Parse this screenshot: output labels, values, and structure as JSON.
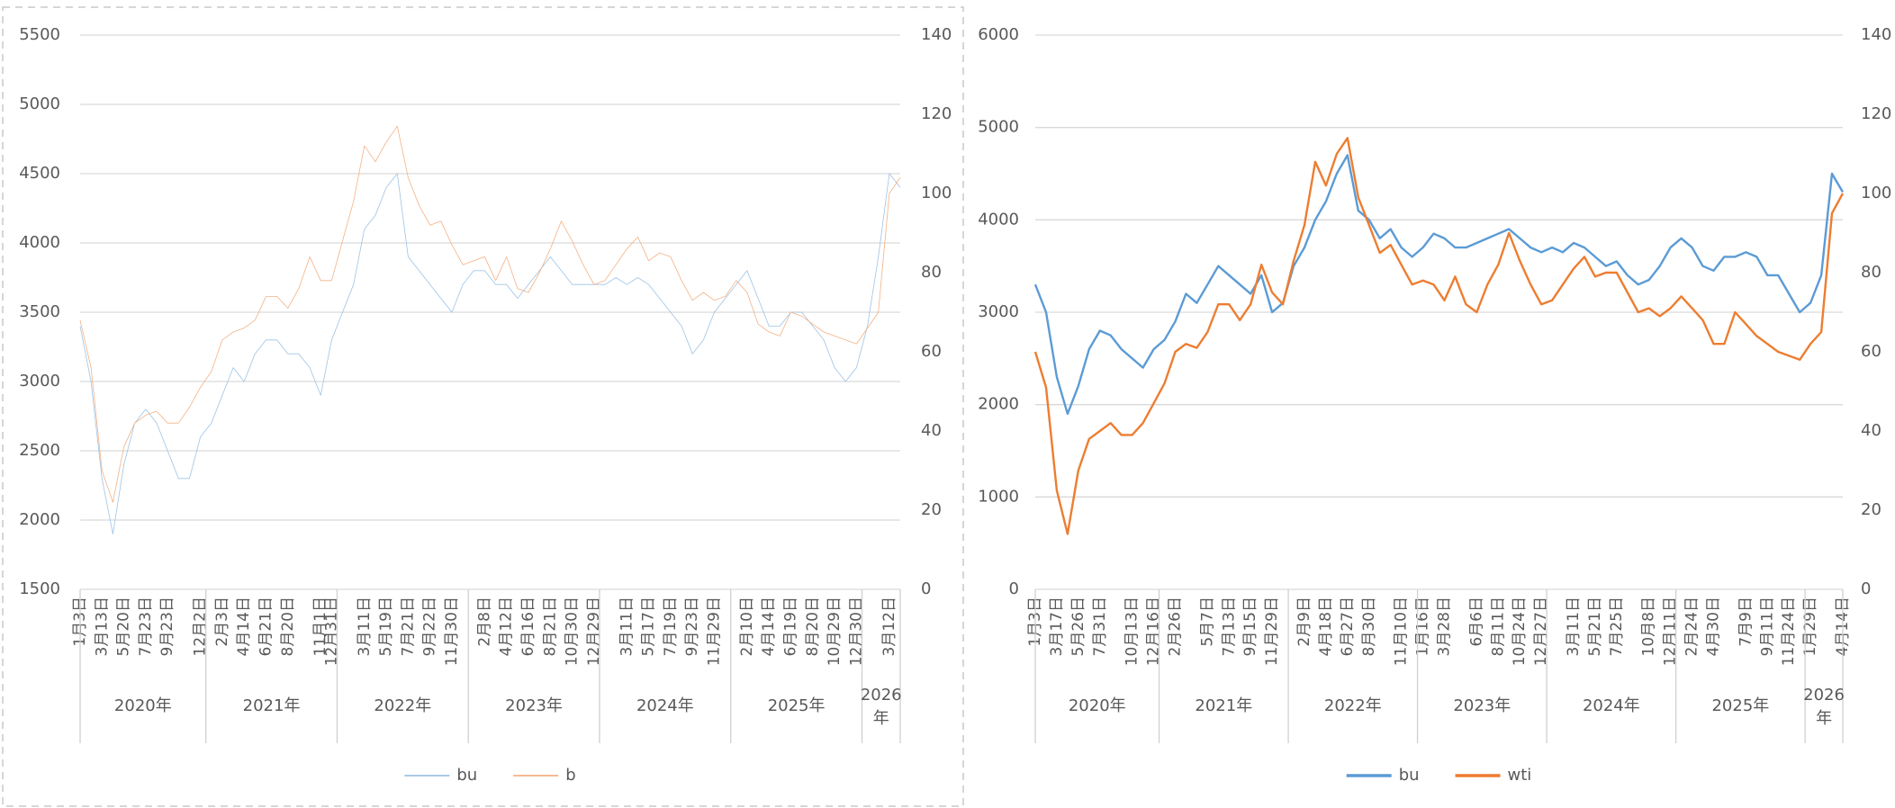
{
  "chart_data": [
    {
      "type": "line",
      "categories": [
        "1月3日",
        null,
        "3月13日",
        null,
        "5月20日",
        null,
        "7月23日",
        null,
        "9月23日",
        null,
        null,
        "12月2日",
        null,
        "2月3日",
        null,
        "4月14日",
        null,
        "6月21日",
        null,
        "8月20日",
        null,
        null,
        "11月1日",
        "12月31日",
        null,
        null,
        "3月11日",
        null,
        "5月19日",
        null,
        "7月21日",
        null,
        "9月22日",
        null,
        "11月30日",
        null,
        null,
        "2月8日",
        null,
        "4月12日",
        null,
        "6月16日",
        null,
        "8月21日",
        null,
        "10月30日",
        null,
        "12月29日",
        null,
        null,
        "3月11日",
        null,
        "5月17日",
        null,
        "7月19日",
        null,
        "9月23日",
        null,
        "11月29日",
        null,
        null,
        "2月10日",
        null,
        "4月14日",
        null,
        "6月19日",
        null,
        "8月20日",
        null,
        "10月29日",
        null,
        "12月30日",
        null,
        null,
        "3月12日",
        null
      ],
      "x_groups": [
        {
          "label": "2020年",
          "count": 12
        },
        {
          "label": "2021年",
          "count": 12
        },
        {
          "label": "2022年",
          "count": 12
        },
        {
          "label": "2023年",
          "count": 12
        },
        {
          "label": "2024年",
          "count": 12
        },
        {
          "label": "2025年",
          "count": 12
        },
        {
          "label": "2026年",
          "count": 4
        }
      ],
      "ylim": [
        1500,
        5500
      ],
      "yticks": [
        1500,
        2000,
        2500,
        3000,
        3500,
        4000,
        4500,
        5000,
        5500
      ],
      "y2lim": [
        0,
        140
      ],
      "y2ticks": [
        0,
        20,
        40,
        60,
        80,
        100,
        120,
        140
      ],
      "grid": true,
      "legend": "bottom",
      "series": [
        {
          "name": "bu",
          "color": "#9dc3e6",
          "values": [
            3400,
            3000,
            2300,
            1900,
            2400,
            2700,
            2800,
            2700,
            2500,
            2300,
            2300,
            2600,
            2700,
            2900,
            3100,
            3000,
            3200,
            3300,
            3300,
            3200,
            3200,
            3100,
            2900,
            3300,
            3500,
            3700,
            4100,
            4200,
            4400,
            4500,
            3900,
            3800,
            3700,
            3600,
            3500,
            3700,
            3800,
            3800,
            3700,
            3700,
            3600,
            3700,
            3800,
            3900,
            3800,
            3700,
            3700,
            3700,
            3700,
            3750,
            3700,
            3750,
            3700,
            3600,
            3500,
            3400,
            3200,
            3300,
            3500,
            3600,
            3700,
            3800,
            3600,
            3400,
            3400,
            3500,
            3500,
            3400,
            3300,
            3100,
            3000,
            3100,
            3400,
            3900,
            4500,
            4400
          ]
        },
        {
          "name": "b",
          "color": "#f4b183",
          "axis": "y2",
          "values": [
            68,
            56,
            30,
            22,
            36,
            42,
            44,
            45,
            42,
            42,
            46,
            51,
            55,
            63,
            65,
            66,
            68,
            74,
            74,
            71,
            76,
            84,
            78,
            78,
            88,
            98,
            112,
            108,
            113,
            117,
            104,
            97,
            92,
            93,
            87,
            82,
            83,
            84,
            78,
            84,
            76,
            75,
            80,
            86,
            93,
            88,
            82,
            77,
            78,
            82,
            86,
            89,
            83,
            85,
            84,
            78,
            73,
            75,
            73,
            74,
            78,
            75,
            67,
            65,
            64,
            70,
            69,
            67,
            65,
            64,
            63,
            62,
            66,
            70,
            100,
            104
          ]
        }
      ]
    },
    {
      "type": "line",
      "categories": [
        "1月3日",
        null,
        "3月17日",
        null,
        "5月26日",
        null,
        "7月31日",
        null,
        null,
        "10月13日",
        null,
        "12月16日",
        null,
        "2月26日",
        null,
        null,
        "5月7日",
        null,
        "7月13日",
        null,
        "9月15日",
        null,
        "11月29日",
        null,
        null,
        "2月9日",
        null,
        "4月18日",
        null,
        "6月27日",
        null,
        "8月30日",
        null,
        null,
        "11月10日",
        null,
        "1月16日",
        null,
        "3月28日",
        null,
        null,
        "6月6日",
        null,
        "8月11日",
        null,
        "10月24日",
        null,
        "12月27日",
        null,
        null,
        "3月11日",
        null,
        "5月21日",
        null,
        "7月25日",
        null,
        null,
        "10月8日",
        null,
        "12月11日",
        null,
        "2月24日",
        null,
        "4月30日",
        null,
        null,
        "7月9日",
        null,
        "9月11日",
        null,
        "11月24日",
        null,
        "1月29日",
        null,
        null,
        "4月14日"
      ],
      "x_groups": [
        {
          "label": "2020年",
          "count": 12
        },
        {
          "label": "2021年",
          "count": 12
        },
        {
          "label": "2022年",
          "count": 12
        },
        {
          "label": "2023年",
          "count": 12
        },
        {
          "label": "2024年",
          "count": 12
        },
        {
          "label": "2025年",
          "count": 12
        },
        {
          "label": "2026年",
          "count": 4
        }
      ],
      "ylim": [
        0,
        6000
      ],
      "yticks": [
        0,
        1000,
        2000,
        3000,
        4000,
        5000,
        6000
      ],
      "y2lim": [
        0,
        140
      ],
      "y2ticks": [
        0,
        20,
        40,
        60,
        80,
        100,
        120,
        140
      ],
      "grid": true,
      "legend": "bottom",
      "series": [
        {
          "name": "bu",
          "color": "#5b9bd5",
          "values": [
            3300,
            3000,
            2300,
            1900,
            2200,
            2600,
            2800,
            2750,
            2600,
            2500,
            2400,
            2600,
            2700,
            2900,
            3200,
            3100,
            3300,
            3500,
            3400,
            3300,
            3200,
            3400,
            3000,
            3100,
            3500,
            3700,
            4000,
            4200,
            4500,
            4700,
            4100,
            4000,
            3800,
            3900,
            3700,
            3600,
            3700,
            3850,
            3800,
            3700,
            3700,
            3750,
            3800,
            3850,
            3900,
            3800,
            3700,
            3650,
            3700,
            3650,
            3750,
            3700,
            3600,
            3500,
            3550,
            3400,
            3300,
            3350,
            3500,
            3700,
            3800,
            3700,
            3500,
            3450,
            3600,
            3600,
            3650,
            3600,
            3400,
            3400,
            3200,
            3000,
            3100,
            3400,
            4500,
            4300
          ]
        },
        {
          "name": "wti",
          "color": "#ed7d31",
          "axis": "y2",
          "values": [
            60,
            51,
            25,
            14,
            30,
            38,
            40,
            42,
            39,
            39,
            42,
            47,
            52,
            60,
            62,
            61,
            65,
            72,
            72,
            68,
            72,
            82,
            75,
            72,
            83,
            92,
            108,
            102,
            110,
            114,
            99,
            92,
            85,
            87,
            82,
            77,
            78,
            77,
            73,
            79,
            72,
            70,
            77,
            82,
            90,
            83,
            77,
            72,
            73,
            77,
            81,
            84,
            79,
            80,
            80,
            75,
            70,
            71,
            69,
            71,
            74,
            71,
            68,
            62,
            62,
            70,
            67,
            64,
            62,
            60,
            59,
            58,
            62,
            65,
            95,
            100
          ]
        }
      ]
    }
  ]
}
